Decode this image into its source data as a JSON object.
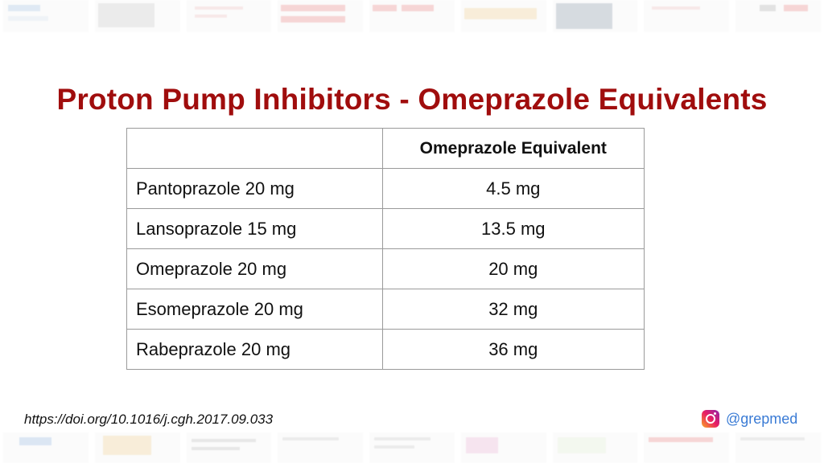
{
  "title": "Proton Pump Inhibitors - Omeprazole Equivalents",
  "table": {
    "header": [
      "",
      "Omeprazole Equivalent"
    ],
    "rows": [
      {
        "drug": "Pantoprazole 20 mg",
        "equivalent": "4.5 mg"
      },
      {
        "drug": "Lansoprazole 15 mg",
        "equivalent": "13.5 mg"
      },
      {
        "drug": "Omeprazole 20 mg",
        "equivalent": "20 mg"
      },
      {
        "drug": "Esomeprazole 20 mg",
        "equivalent": "32 mg"
      },
      {
        "drug": "Rabeprazole 20 mg",
        "equivalent": "36 mg"
      }
    ]
  },
  "source": "https://doi.org/10.1016/j.cgh.2017.09.033",
  "social": {
    "icon": "instagram-icon",
    "handle": "@grepmed"
  },
  "colors": {
    "title": "#a00d0d",
    "handle": "#3a7bd5"
  }
}
